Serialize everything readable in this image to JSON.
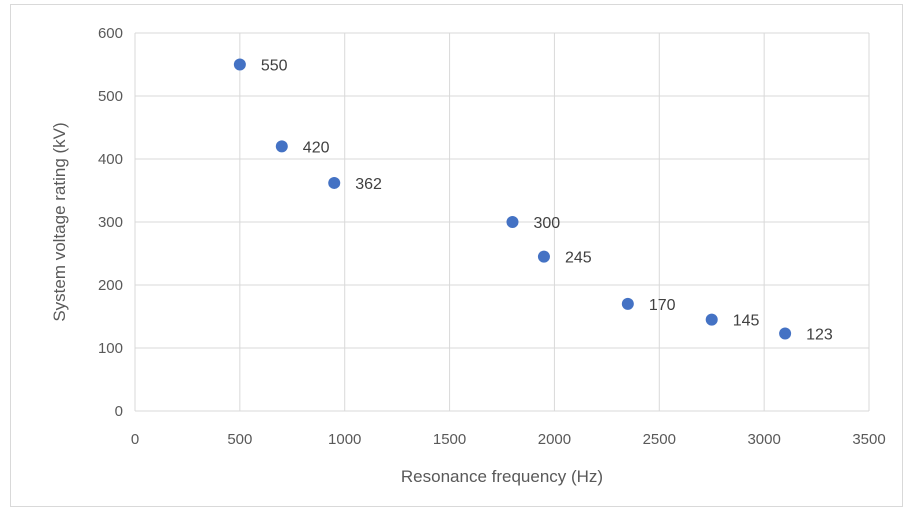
{
  "chart_data": {
    "type": "scatter",
    "title": "",
    "xlabel": "Resonance frequency (Hz)",
    "ylabel": "System voltage rating (kV)",
    "xlim": [
      0,
      3500
    ],
    "ylim": [
      0,
      600
    ],
    "xticks": [
      0,
      500,
      1000,
      1500,
      2000,
      2500,
      3000,
      3500
    ],
    "yticks": [
      0,
      100,
      200,
      300,
      400,
      500,
      600
    ],
    "grid": true,
    "legend": "none",
    "marker_color": "#4472c4",
    "gridline_color": "#d9d9d9",
    "points": [
      {
        "x": 500,
        "y": 550,
        "label": "550"
      },
      {
        "x": 700,
        "y": 420,
        "label": "420"
      },
      {
        "x": 950,
        "y": 362,
        "label": "362"
      },
      {
        "x": 1800,
        "y": 300,
        "label": "300"
      },
      {
        "x": 1950,
        "y": 245,
        "label": "245"
      },
      {
        "x": 2350,
        "y": 170,
        "label": "170"
      },
      {
        "x": 2750,
        "y": 145,
        "label": "145"
      },
      {
        "x": 3100,
        "y": 123,
        "label": "123"
      }
    ]
  }
}
